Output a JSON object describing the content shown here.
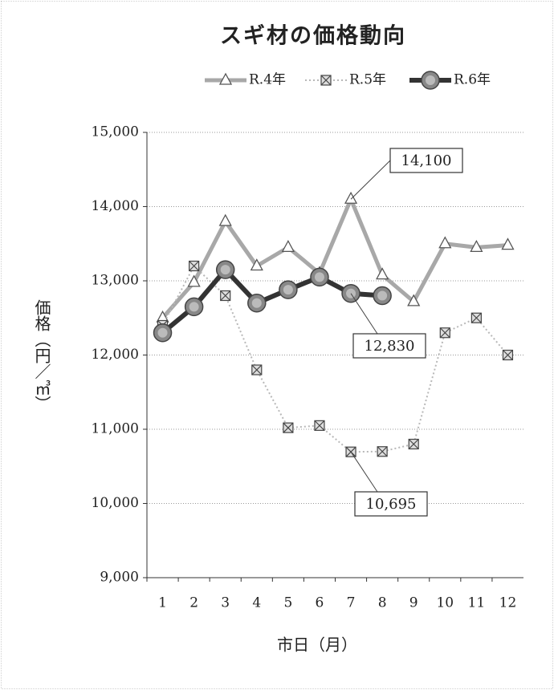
{
  "chart_data": {
    "type": "line",
    "title": "スギ材の価格動向",
    "x_label": "市日（月）",
    "y_label": "価格（円／㎥）",
    "categories": [
      "1",
      "2",
      "3",
      "4",
      "5",
      "6",
      "7",
      "8",
      "9",
      "10",
      "11",
      "12"
    ],
    "series": [
      {
        "name": "R.4年",
        "color": "#9a9a9a",
        "marker": "triangle",
        "values": [
          12500,
          12980,
          13800,
          13200,
          13450,
          13100,
          14100,
          13080,
          12720,
          13500,
          13450,
          13480
        ]
      },
      {
        "name": "R.5年",
        "color": "#b0b0b0",
        "marker": "square",
        "values": [
          12400,
          13200,
          12800,
          11800,
          11020,
          11050,
          10695,
          10700,
          10800,
          12300,
          12500,
          12000
        ]
      },
      {
        "name": "R.6年",
        "color": "#333333",
        "marker": "circle",
        "values": [
          12300,
          12650,
          13150,
          12700,
          12880,
          13050,
          12830,
          12800,
          null,
          null,
          null,
          null
        ]
      }
    ],
    "ylim": [
      9000,
      15000
    ],
    "yticks": [
      {
        "value": 9000,
        "label": "9,000"
      },
      {
        "value": 10000,
        "label": "10,000"
      },
      {
        "value": 11000,
        "label": "11,000"
      },
      {
        "value": 12000,
        "label": "12,000"
      },
      {
        "value": 13000,
        "label": "13,000"
      },
      {
        "value": 14000,
        "label": "14,000"
      },
      {
        "value": 15000,
        "label": "15,000"
      }
    ],
    "grid": true,
    "legend": "top",
    "annotations": [
      {
        "text": "14,100"
      },
      {
        "text": "12,830"
      },
      {
        "text": "10,695"
      }
    ]
  }
}
